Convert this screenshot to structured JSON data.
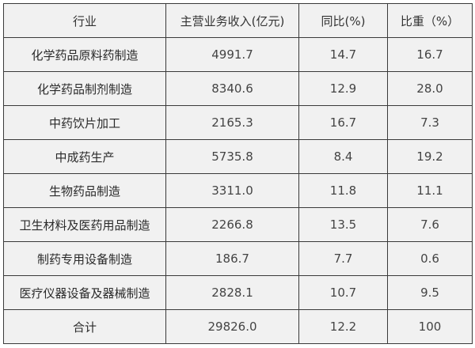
{
  "table": {
    "headers": [
      "行业",
      "主营业务收入(亿元)",
      "同比(%)",
      "比重（%）"
    ],
    "rows": [
      [
        "化学药品原料药制造",
        "4991.7",
        "14.7",
        "16.7"
      ],
      [
        "化学药品制剂制造",
        "8340.6",
        "12.9",
        "28.0"
      ],
      [
        "中药饮片加工",
        "2165.3",
        "16.7",
        "7.3"
      ],
      [
        "中成药生产",
        "5735.8",
        "8.4",
        "19.2"
      ],
      [
        "生物药品制造",
        "3311.0",
        "11.8",
        "11.1"
      ],
      [
        "卫生材料及医药用品制造",
        "2266.8",
        "13.5",
        "7.6"
      ],
      [
        "制药专用设备制造",
        "186.7",
        "7.7",
        "0.6"
      ],
      [
        "医疗仪器设备及器械制造",
        "2828.1",
        "10.7",
        "9.5"
      ],
      [
        "合计",
        "29826.0",
        "12.2",
        "100"
      ]
    ]
  }
}
